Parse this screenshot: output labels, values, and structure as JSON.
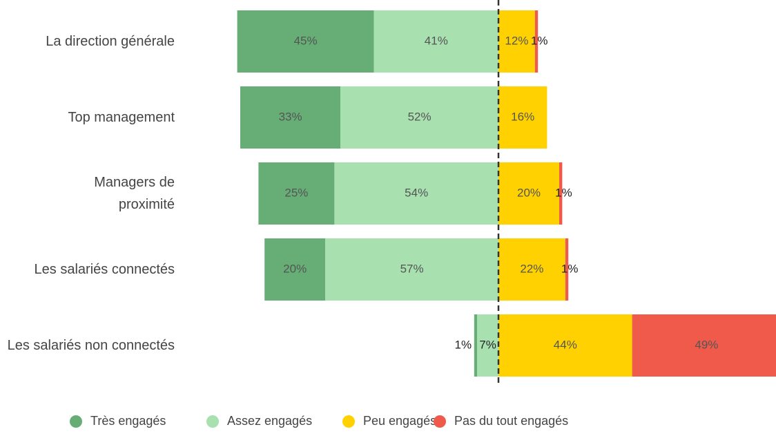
{
  "chart_data": {
    "type": "diverging_bar",
    "categories": [
      "La direction générale",
      "Top management",
      "Managers de\nproximité",
      "Les salariés connectés",
      "Les salariés non connectés"
    ],
    "series": [
      {
        "name": "Très engagés",
        "color": "#66ad76",
        "values": [
          45,
          33,
          25,
          20,
          1
        ],
        "value_labels": [
          "45%",
          "33%",
          "25%",
          "20%",
          "1%"
        ]
      },
      {
        "name": "Assez engagés",
        "color": "#a8e0b0",
        "values": [
          41,
          52,
          54,
          57,
          7
        ],
        "value_labels": [
          "41%",
          "52%",
          "54%",
          "57%",
          "7%"
        ]
      },
      {
        "name": "Peu engagés",
        "color": "#ffd100",
        "values": [
          12,
          16,
          20,
          22,
          44
        ],
        "value_labels": [
          "12%",
          "16%",
          "20%",
          "22%",
          "44%"
        ]
      },
      {
        "name": "Pas du tout engagés",
        "color": "#f05a4a",
        "values": [
          1,
          null,
          1,
          1,
          49
        ],
        "value_labels": [
          "1%",
          null,
          "1%",
          "1%",
          "49%"
        ]
      }
    ]
  }
}
